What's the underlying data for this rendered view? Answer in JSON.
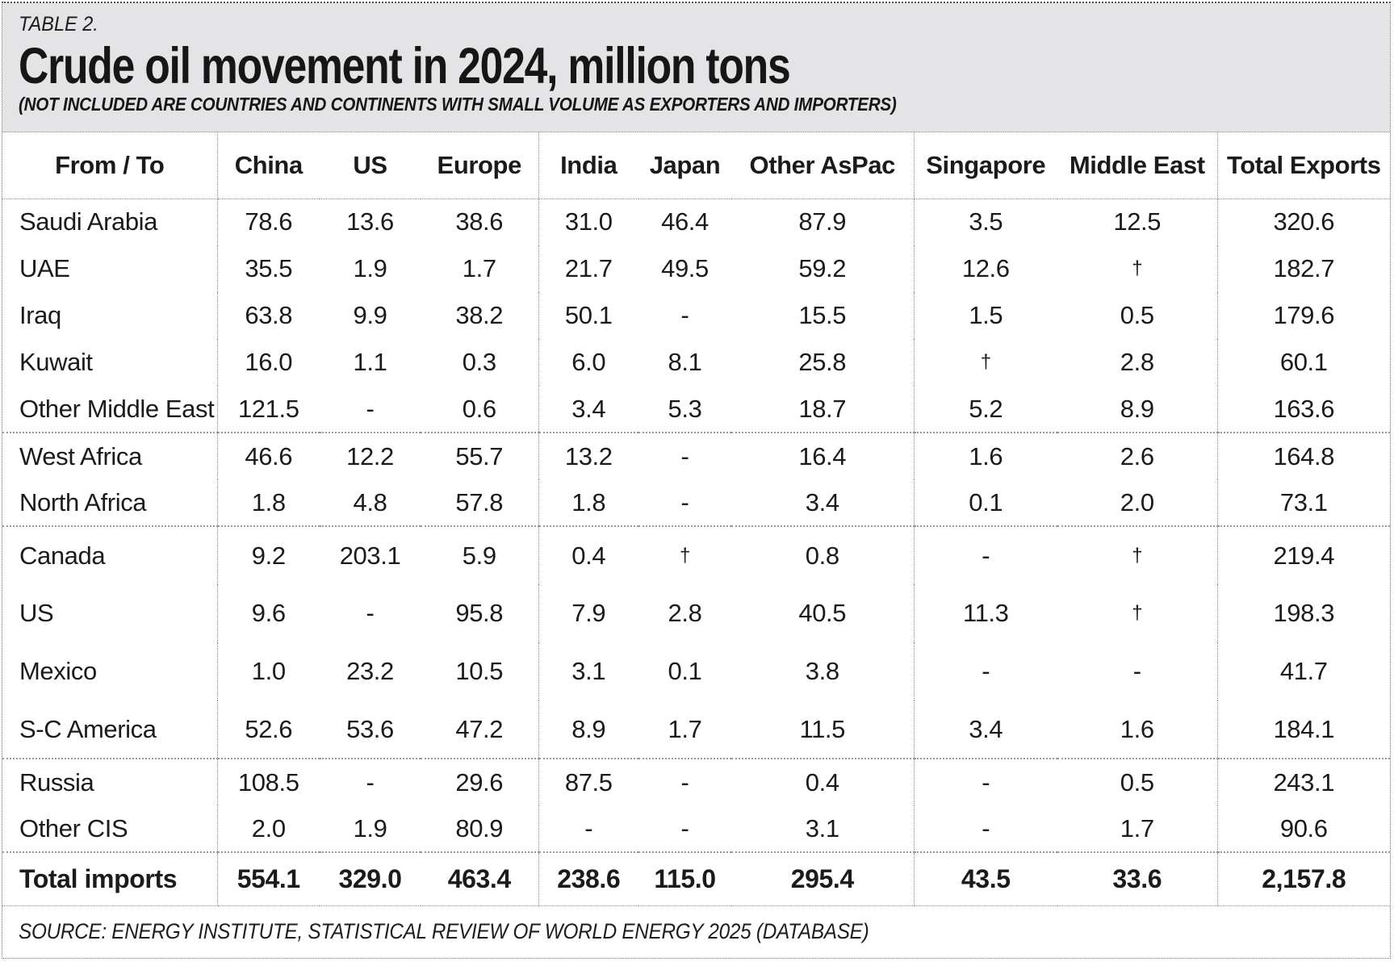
{
  "header": {
    "kicker": "TABLE 2.",
    "title": "Crude oil movement in 2024, million tons",
    "subtitle": "(NOT INCLUDED ARE COUNTRIES AND CONTINENTS WITH SMALL VOLUME AS EXPORTERS AND IMPORTERS)"
  },
  "footer": {
    "source": "SOURCE: ENERGY INSTITUTE, STATISTICAL REVIEW OF WORLD ENERGY 2025 (DATABASE)"
  },
  "colors": {
    "band-bg": "#e4e4e6",
    "ink": "#161616",
    "line": "#8e8e8e"
  },
  "chart_data": {
    "type": "table",
    "title": "Crude oil movement in 2024, million tons",
    "units": "million tons",
    "columns": [
      "From / To",
      "China",
      "US",
      "Europe",
      "India",
      "Japan",
      "Other AsPac",
      "Singapore",
      "Middle East",
      "Total Exports"
    ],
    "column_section_breaks_after": [
      "From / To",
      "Europe",
      "Other AsPac",
      "Middle East"
    ],
    "rows": [
      {
        "label": "Saudi Arabia",
        "values": [
          "78.6",
          "13.6",
          "38.6",
          "31.0",
          "46.4",
          "87.9",
          "3.5",
          "12.5",
          "320.6"
        ]
      },
      {
        "label": "UAE",
        "values": [
          "35.5",
          "1.9",
          "1.7",
          "21.7",
          "49.5",
          "59.2",
          "12.6",
          "†",
          "182.7"
        ]
      },
      {
        "label": "Iraq",
        "values": [
          "63.8",
          "9.9",
          "38.2",
          "50.1",
          "-",
          "15.5",
          "1.5",
          "0.5",
          "179.6"
        ]
      },
      {
        "label": "Kuwait",
        "values": [
          "16.0",
          "1.1",
          "0.3",
          "6.0",
          "8.1",
          "25.8",
          "†",
          "2.8",
          "60.1"
        ]
      },
      {
        "label": "Other Middle East",
        "values": [
          "121.5",
          "-",
          "0.6",
          "3.4",
          "5.3",
          "18.7",
          "5.2",
          "8.9",
          "163.6"
        ],
        "group_end": true
      },
      {
        "label": "West Africa",
        "values": [
          "46.6",
          "12.2",
          "55.7",
          "13.2",
          "-",
          "16.4",
          "1.6",
          "2.6",
          "164.8"
        ]
      },
      {
        "label": "North Africa",
        "values": [
          "1.8",
          "4.8",
          "57.8",
          "1.8",
          "-",
          "3.4",
          "0.1",
          "2.0",
          "73.1"
        ],
        "group_end": true
      },
      {
        "label": "Canada",
        "values": [
          "9.2",
          "203.1",
          "5.9",
          "0.4",
          "†",
          "0.8",
          "-",
          "†",
          "219.4"
        ]
      },
      {
        "label": "US",
        "values": [
          "9.6",
          "-",
          "95.8",
          "7.9",
          "2.8",
          "40.5",
          "11.3",
          "†",
          "198.3"
        ]
      },
      {
        "label": "Mexico",
        "values": [
          "1.0",
          "23.2",
          "10.5",
          "3.1",
          "0.1",
          "3.8",
          "-",
          "-",
          "41.7"
        ]
      },
      {
        "label": "S-C America",
        "values": [
          "52.6",
          "53.6",
          "47.2",
          "8.9",
          "1.7",
          "11.5",
          "3.4",
          "1.6",
          "184.1"
        ],
        "group_end": true
      },
      {
        "label": "Russia",
        "values": [
          "108.5",
          "-",
          "29.6",
          "87.5",
          "-",
          "0.4",
          "-",
          "0.5",
          "243.1"
        ]
      },
      {
        "label": "Other CIS",
        "values": [
          "2.0",
          "1.9",
          "80.9",
          "-",
          "-",
          "3.1",
          "-",
          "1.7",
          "90.6"
        ],
        "group_end": true
      },
      {
        "label": "Total imports",
        "values": [
          "554.1",
          "329.0",
          "463.4",
          "238.6",
          "115.0",
          "295.4",
          "43.5",
          "33.6",
          "2,157.8"
        ],
        "total": true
      }
    ]
  }
}
